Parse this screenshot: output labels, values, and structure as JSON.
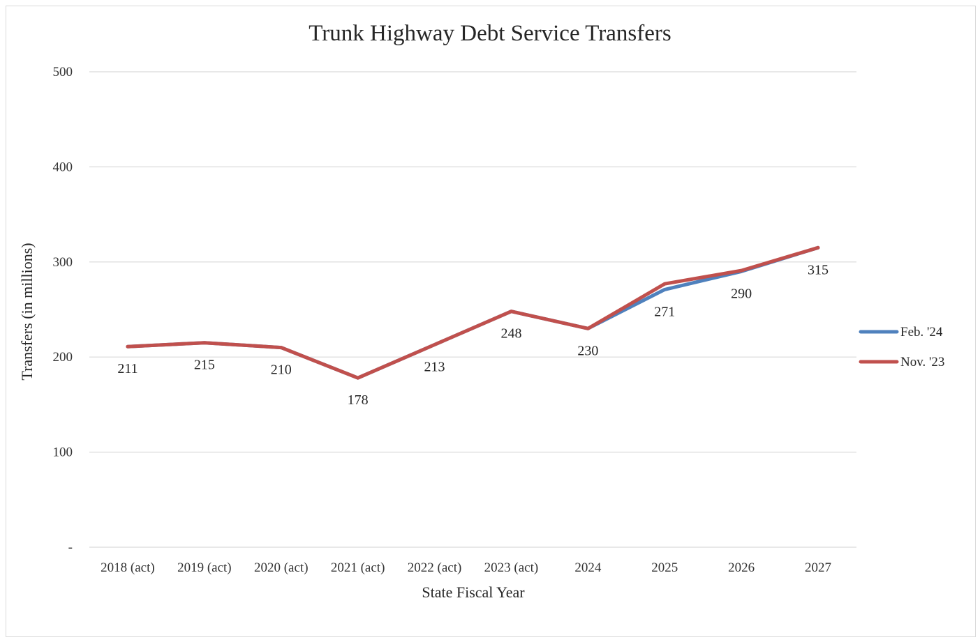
{
  "chart_data": {
    "type": "line",
    "title": "Trunk Highway Debt Service Transfers",
    "xlabel": "State Fiscal Year",
    "ylabel": "Transfers (in millions)",
    "categories": [
      "2018 (act)",
      "2019 (act)",
      "2020 (act)",
      "2021 (act)",
      "2022 (act)",
      "2023 (act)",
      "2024",
      "2025",
      "2026",
      "2027"
    ],
    "ylim": [
      0,
      500
    ],
    "yticks": [
      {
        "value": 0,
        "label": "-"
      },
      {
        "value": 100,
        "label": "100"
      },
      {
        "value": 200,
        "label": "200"
      },
      {
        "value": 300,
        "label": "300"
      },
      {
        "value": 400,
        "label": "400"
      },
      {
        "value": 500,
        "label": "500"
      }
    ],
    "grid": true,
    "legend_position": "right",
    "series": [
      {
        "name": "Feb. '24",
        "color": "#4f81bd",
        "values": [
          211,
          215,
          210,
          178,
          213,
          248,
          230,
          271,
          290,
          315
        ]
      },
      {
        "name": "Nov. '23",
        "color": "#c0504d",
        "values": [
          211,
          215,
          210,
          178,
          213,
          248,
          230,
          277,
          291,
          315
        ]
      }
    ],
    "data_labels": [
      "211",
      "215",
      "210",
      "178",
      "213",
      "248",
      "230",
      "271",
      "290",
      "315"
    ]
  }
}
